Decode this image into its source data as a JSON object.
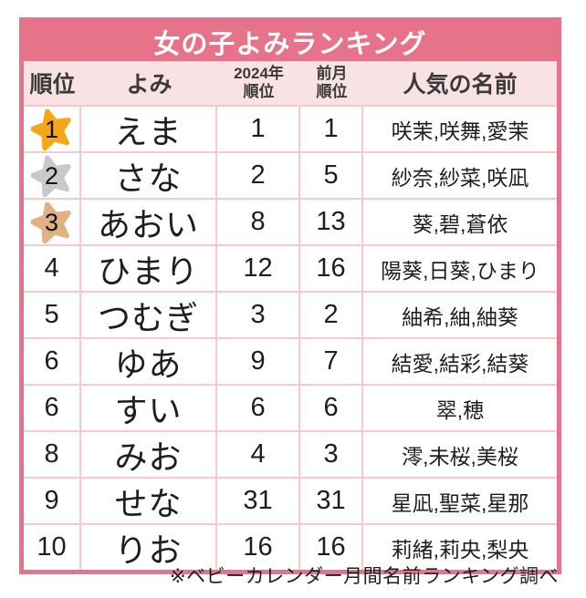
{
  "title": "女の子よみランキング",
  "footer_note": "※ベビーカレンダー月間名前ランキング調べ",
  "colors": {
    "banner_pink": "#E7738A",
    "header_bg": "#F9E2E4",
    "grid_line": "#F6C9D0",
    "title_text": "#FFFFFF",
    "gold": "#F5A71B",
    "silver": "#C8C9CB",
    "bronze": "#E0B183",
    "body_text": "#1E1E1E"
  },
  "table": {
    "headers": {
      "rank": "順位",
      "yomi": "よみ",
      "rank2024_line1": "2024年",
      "rank2024_line2": "順位",
      "prev_line1": "前月",
      "prev_line2": "順位",
      "names": "人気の名前"
    },
    "rows": [
      {
        "rank": "1",
        "medal": "gold",
        "yomi": "えま",
        "rank_2024": "1",
        "rank_prev": "1",
        "names": "咲茉,咲舞,愛茉"
      },
      {
        "rank": "2",
        "medal": "silver",
        "yomi": "さな",
        "rank_2024": "2",
        "rank_prev": "5",
        "names": "紗奈,紗菜,咲凪"
      },
      {
        "rank": "3",
        "medal": "bronze",
        "yomi": "あおい",
        "rank_2024": "8",
        "rank_prev": "13",
        "names": "葵,碧,蒼依"
      },
      {
        "rank": "4",
        "medal": null,
        "yomi": "ひまり",
        "rank_2024": "12",
        "rank_prev": "16",
        "names": "陽葵,日葵,ひまり"
      },
      {
        "rank": "5",
        "medal": null,
        "yomi": "つむぎ",
        "rank_2024": "3",
        "rank_prev": "2",
        "names": "紬希,紬,紬葵"
      },
      {
        "rank": "6",
        "medal": null,
        "yomi": "ゆあ",
        "rank_2024": "9",
        "rank_prev": "7",
        "names": "結愛,結彩,結葵"
      },
      {
        "rank": "6",
        "medal": null,
        "yomi": "すい",
        "rank_2024": "6",
        "rank_prev": "6",
        "names": "翠,穂"
      },
      {
        "rank": "8",
        "medal": null,
        "yomi": "みお",
        "rank_2024": "4",
        "rank_prev": "3",
        "names": "澪,未桜,美桜"
      },
      {
        "rank": "9",
        "medal": null,
        "yomi": "せな",
        "rank_2024": "31",
        "rank_prev": "31",
        "names": "星凪,聖菜,星那"
      },
      {
        "rank": "10",
        "medal": null,
        "yomi": "りお",
        "rank_2024": "16",
        "rank_prev": "16",
        "names": "莉緒,莉央,梨央"
      }
    ]
  },
  "chart_data": {
    "type": "table",
    "title": "女の子よみランキング",
    "columns": [
      "順位",
      "よみ",
      "2024年順位",
      "前月順位",
      "人気の名前"
    ],
    "rows": [
      [
        "1",
        "えま",
        1,
        1,
        "咲茉,咲舞,愛茉"
      ],
      [
        "2",
        "さな",
        2,
        5,
        "紗奈,紗菜,咲凪"
      ],
      [
        "3",
        "あおい",
        8,
        13,
        "葵,碧,蒼依"
      ],
      [
        "4",
        "ひまり",
        12,
        16,
        "陽葵,日葵,ひまり"
      ],
      [
        "5",
        "つむぎ",
        3,
        2,
        "紬希,紬,紬葵"
      ],
      [
        "6",
        "ゆあ",
        9,
        7,
        "結愛,結彩,結葵"
      ],
      [
        "6",
        "すい",
        6,
        6,
        "翠,穂"
      ],
      [
        "8",
        "みお",
        4,
        3,
        "澪,未桜,美桜"
      ],
      [
        "9",
        "せな",
        31,
        31,
        "星凪,聖菜,星那"
      ],
      [
        "10",
        "りお",
        16,
        16,
        "莉緒,莉央,梨央"
      ]
    ],
    "note": "※ベビーカレンダー月間名前ランキング調べ"
  }
}
